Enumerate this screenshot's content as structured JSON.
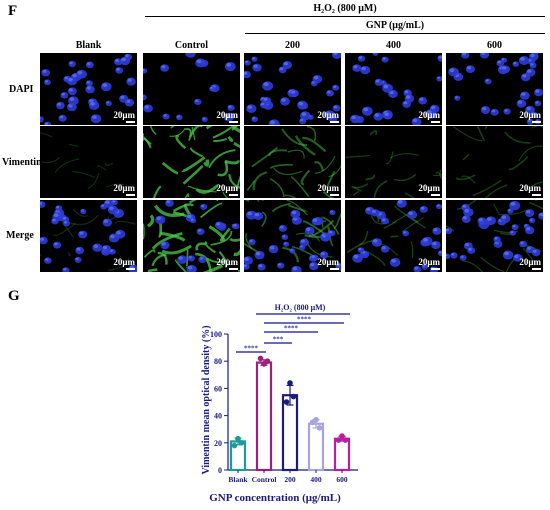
{
  "panel_f": {
    "letter": "F",
    "treatment_header": "H₂O₂ (800 μM)",
    "gnp_header": "GNP (μg/mL)",
    "columns": [
      "Blank",
      "Control",
      "200",
      "400",
      "600"
    ],
    "rows": [
      "DAPI",
      "Vimentin",
      "Merge"
    ],
    "scale_bar_label": "20μm"
  },
  "panel_g": {
    "letter": "G"
  },
  "chart_data": {
    "type": "bar",
    "categories": [
      "Blank",
      "Control",
      "200",
      "400",
      "600"
    ],
    "values": [
      21,
      79,
      55,
      34,
      23
    ],
    "points": [
      [
        23,
        18,
        20
      ],
      [
        78,
        82,
        80
      ],
      [
        64,
        50,
        54
      ],
      [
        37,
        35,
        31
      ],
      [
        25,
        22,
        22
      ]
    ],
    "ylabel": "Vimentin mean optical density (%)",
    "xlabel": "GNP concentration (μg/mL)",
    "ylim": [
      0,
      100
    ],
    "yticks": [
      0,
      20,
      40,
      60,
      80,
      100
    ],
    "bar_colors": [
      "#1f9a9a",
      "#9b1f7c",
      "#1b1b7a",
      "#a8a4e2",
      "#b81e9e"
    ],
    "annotation_label": "H₂O₂ (800 μM)",
    "significance": [
      {
        "from": "Blank",
        "to": "Control",
        "label": "****"
      },
      {
        "from": "Control",
        "to": "200",
        "label": "***"
      },
      {
        "from": "Control",
        "to": "400",
        "label": "****"
      },
      {
        "from": "Control",
        "to": "600",
        "label": "****"
      }
    ],
    "significance_color": "#3a3aa8"
  }
}
